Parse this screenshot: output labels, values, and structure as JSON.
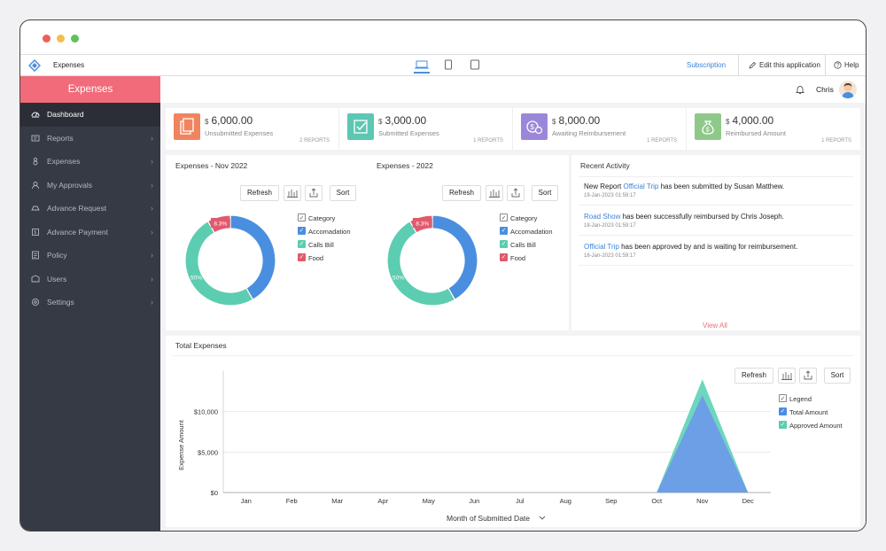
{
  "appbar": {
    "title": "Expenses",
    "subscription": "Subscription",
    "edit": "Edit this application",
    "help": "Help"
  },
  "sidebar": {
    "brand": "Expenses",
    "items": [
      {
        "label": "Dashboard",
        "icon": "dashboard-icon",
        "active": true
      },
      {
        "label": "Reports",
        "icon": "reports-icon"
      },
      {
        "label": "Expenses",
        "icon": "expenses-icon"
      },
      {
        "label": "My Approvals",
        "icon": "approvals-icon"
      },
      {
        "label": "Advance Request",
        "icon": "advance-request-icon"
      },
      {
        "label": "Advance Payment",
        "icon": "advance-payment-icon"
      },
      {
        "label": "Policy",
        "icon": "policy-icon"
      },
      {
        "label": "Users",
        "icon": "users-icon"
      },
      {
        "label": "Settings",
        "icon": "settings-icon"
      }
    ]
  },
  "topbar": {
    "user": "Chris"
  },
  "cards": [
    {
      "currency": "$",
      "amount": "6,000.00",
      "label": "Unsubmitted Expenses",
      "reports": "2 REPORTS",
      "color": "#f0845f"
    },
    {
      "currency": "$",
      "amount": "3,000.00",
      "label": "Submitted Expenses",
      "reports": "1 REPORTS",
      "color": "#5cc7b2"
    },
    {
      "currency": "$",
      "amount": "8,000.00",
      "label": "Awaiting Reimbursement",
      "reports": "1 REPORTS",
      "color": "#9b87d9"
    },
    {
      "currency": "$",
      "amount": "4,000.00",
      "label": "Reimbursed Amount",
      "reports": "1 REPORTS",
      "color": "#8fc98a"
    }
  ],
  "buttons": {
    "refresh": "Refresh",
    "sort": "Sort"
  },
  "donut_legend": {
    "header": "Category",
    "items": [
      {
        "label": "Accomadation",
        "color": "#4a8ee0"
      },
      {
        "label": "Calls Bill",
        "color": "#5ccdb0"
      },
      {
        "label": "Food",
        "color": "#e05a6d"
      }
    ]
  },
  "chart_data": [
    {
      "type": "pie",
      "title": "Expenses - Nov 2022",
      "labels": [
        "Accomadation",
        "Calls Bill",
        "Food"
      ],
      "values": [
        41.7,
        50,
        8.3
      ],
      "data_labels": [
        "",
        "50%",
        "8.3%"
      ],
      "colors": [
        "#4a8ee0",
        "#5ccdb0",
        "#e05a6d"
      ],
      "legend": "right"
    },
    {
      "type": "pie",
      "title": "Expenses - 2022",
      "labels": [
        "Accomadation",
        "Calls Bill",
        "Food"
      ],
      "values": [
        41.7,
        50,
        8.3
      ],
      "data_labels": [
        "",
        "50%",
        "8.3%"
      ],
      "colors": [
        "#4a8ee0",
        "#5ccdb0",
        "#e05a6d"
      ],
      "legend": "right"
    },
    {
      "type": "area",
      "title": "Total Expenses",
      "xlabel": "Month of Submitted Date",
      "ylabel": "Expense Amount",
      "categories": [
        "Jan",
        "Feb",
        "Mar",
        "Apr",
        "May",
        "Jun",
        "Jul",
        "Aug",
        "Sep",
        "Oct",
        "Nov",
        "Dec"
      ],
      "yticks": [
        "$0",
        "$5,000",
        "$10,000"
      ],
      "ylim": [
        0,
        15000
      ],
      "legend_header": "Legend",
      "series": [
        {
          "name": "Total Amount",
          "values": [
            0,
            0,
            0,
            0,
            0,
            0,
            0,
            0,
            0,
            0,
            12000,
            0
          ],
          "color": "#6c9fe6"
        },
        {
          "name": "Approved Amount",
          "values": [
            0,
            0,
            0,
            0,
            0,
            0,
            0,
            0,
            0,
            0,
            14000,
            0
          ],
          "color": "#6ed6be"
        }
      ]
    }
  ],
  "activity": {
    "title": "Recent Activity",
    "items": [
      {
        "pre": "New Report ",
        "link": "Official Trip",
        "post": " has been submitted by Susan Matthew.",
        "time": "19-Jan-2023 01:59:17"
      },
      {
        "pre": "",
        "link": "Road Show",
        "post": " has been successfully reimbursed by Chris Joseph.",
        "time": "18-Jan-2023 01:59:17"
      },
      {
        "pre": "",
        "link": "Official Trip",
        "post": " has been approved by and is waiting for reimbursement.",
        "time": "18-Jan-2023 01:59:17"
      }
    ],
    "view_all": "View All"
  }
}
